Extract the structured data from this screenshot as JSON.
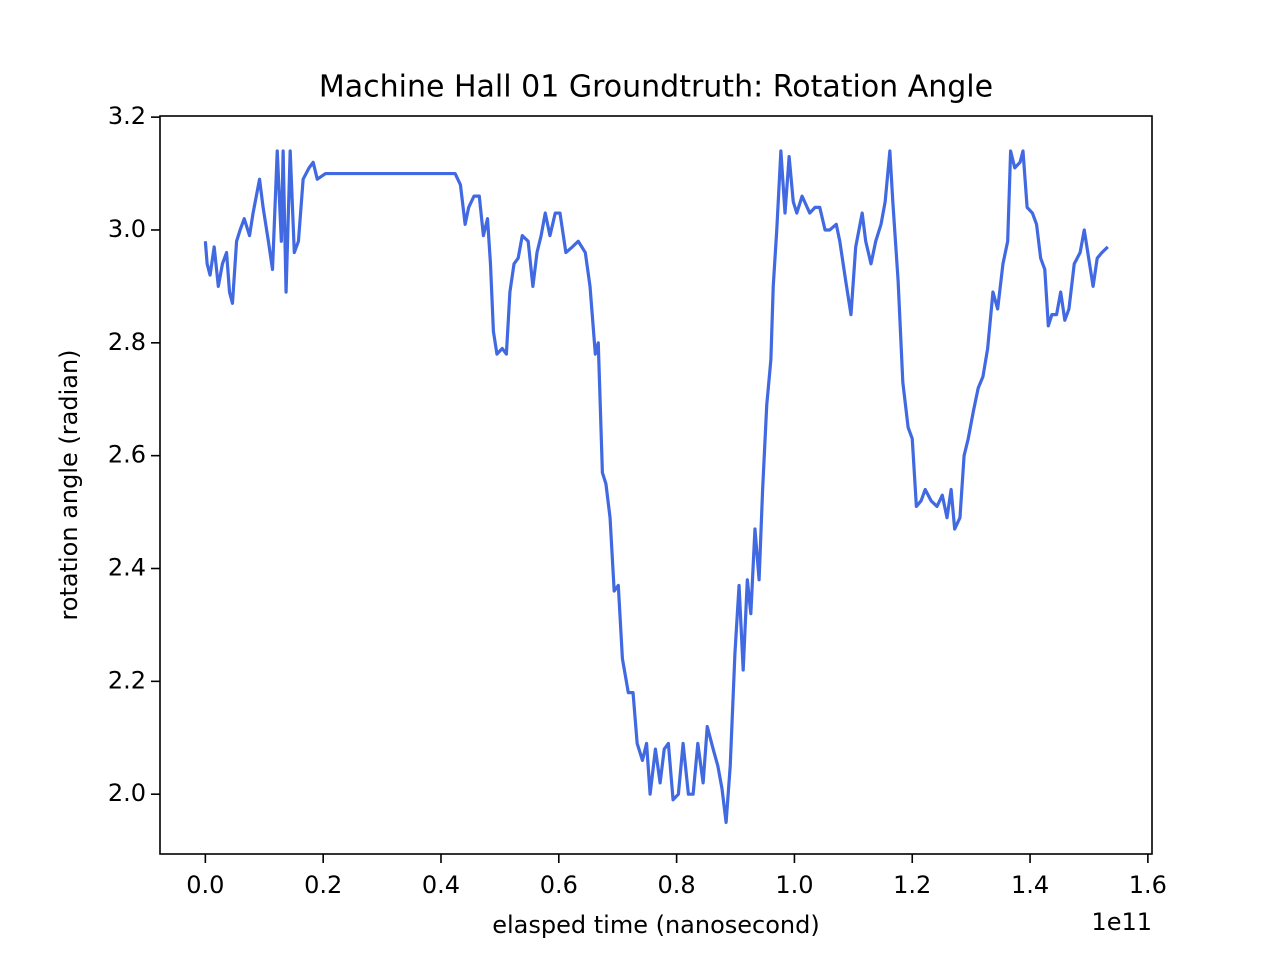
{
  "chart_data": {
    "type": "line",
    "title": "Machine Hall 01 Groundtruth: Rotation Angle",
    "x_label": "elasped time (nanosecond)",
    "y_label": "rotation angle (radian)",
    "x_offset_label": "1e11",
    "grid": false,
    "xlim": [
      -0.077,
      1.607
    ],
    "ylim": [
      1.894,
      3.202
    ],
    "xticks": [
      {
        "value": 0,
        "label": "0.0"
      },
      0.2,
      0.4,
      0.6,
      0.8,
      {
        "value": 1,
        "label": "1.0"
      },
      1.2,
      1.4,
      1.6
    ],
    "yticks": [
      {
        "value": 2,
        "label": "2.0"
      },
      2.2,
      2.4,
      2.6,
      2.8,
      {
        "value": 3,
        "label": "3.0"
      },
      3.2
    ],
    "x": [
      0,
      0.003,
      0.008,
      0.015,
      0.022,
      0.029,
      0.036,
      0.041,
      0.046,
      0.053,
      0.059,
      0.066,
      0.075,
      0.081,
      0.092,
      0.098,
      0.107,
      0.114,
      0.122,
      0.129,
      0.132,
      0.137,
      0.144,
      0.151,
      0.158,
      0.166,
      0.176,
      0.183,
      0.19,
      0.204,
      0.246,
      0.331,
      0.424,
      0.433,
      0.441,
      0.447,
      0.456,
      0.465,
      0.472,
      0.479,
      0.484,
      0.489,
      0.495,
      0.504,
      0.511,
      0.517,
      0.524,
      0.531,
      0.538,
      0.548,
      0.556,
      0.563,
      0.57,
      0.577,
      0.585,
      0.594,
      0.602,
      0.612,
      0.623,
      0.633,
      0.645,
      0.653,
      0.662,
      0.667,
      0.674,
      0.68,
      0.687,
      0.694,
      0.701,
      0.708,
      0.718,
      0.726,
      0.733,
      0.742,
      0.749,
      0.755,
      0.764,
      0.772,
      0.779,
      0.786,
      0.794,
      0.803,
      0.811,
      0.82,
      0.828,
      0.836,
      0.845,
      0.852,
      0.862,
      0.87,
      0.877,
      0.884,
      0.891,
      0.899,
      0.906,
      0.913,
      0.92,
      0.926,
      0.933,
      0.94,
      0.946,
      0.953,
      0.96,
      0.964,
      0.97,
      0.977,
      0.984,
      0.991,
      0.998,
      1.004,
      1.013,
      1.026,
      1.035,
      1.043,
      1.052,
      1.06,
      1.071,
      1.077,
      1.087,
      1.096,
      1.104,
      1.115,
      1.121,
      1.13,
      1.138,
      1.147,
      1.154,
      1.162,
      1.167,
      1.176,
      1.184,
      1.193,
      1.2,
      1.207,
      1.215,
      1.222,
      1.232,
      1.242,
      1.251,
      1.259,
      1.266,
      1.272,
      1.281,
      1.288,
      1.295,
      1.304,
      1.312,
      1.32,
      1.328,
      1.337,
      1.345,
      1.354,
      1.362,
      1.367,
      1.374,
      1.383,
      1.388,
      1.395,
      1.404,
      1.411,
      1.418,
      1.425,
      1.431,
      1.437,
      1.445,
      1.452,
      1.459,
      1.466,
      1.475,
      1.485,
      1.492,
      1.498,
      1.507,
      1.514,
      1.522,
      1.532
    ],
    "series": [
      {
        "color": "#4169e1",
        "values": [
          2.98,
          2.94,
          2.92,
          2.97,
          2.9,
          2.94,
          2.96,
          2.89,
          2.87,
          2.98,
          3.0,
          3.02,
          2.99,
          3.03,
          3.09,
          3.04,
          2.98,
          2.93,
          3.14,
          2.98,
          3.14,
          2.89,
          3.14,
          2.96,
          2.98,
          3.09,
          3.11,
          3.12,
          3.09,
          3.1,
          3.1,
          3.1,
          3.1,
          3.08,
          3.01,
          3.04,
          3.06,
          3.06,
          2.99,
          3.02,
          2.94,
          2.82,
          2.78,
          2.79,
          2.78,
          2.89,
          2.94,
          2.95,
          2.99,
          2.98,
          2.9,
          2.96,
          2.99,
          3.03,
          2.99,
          3.03,
          3.03,
          2.96,
          2.97,
          2.98,
          2.96,
          2.9,
          2.78,
          2.8,
          2.57,
          2.55,
          2.49,
          2.36,
          2.37,
          2.24,
          2.18,
          2.18,
          2.09,
          2.06,
          2.09,
          2.0,
          2.08,
          2.02,
          2.08,
          2.09,
          1.99,
          2.0,
          2.09,
          2.0,
          2.0,
          2.09,
          2.02,
          2.12,
          2.08,
          2.05,
          2.01,
          1.95,
          2.05,
          2.25,
          2.37,
          2.22,
          2.38,
          2.32,
          2.47,
          2.38,
          2.54,
          2.69,
          2.77,
          2.9,
          3.0,
          3.14,
          3.03,
          3.13,
          3.05,
          3.03,
          3.06,
          3.03,
          3.04,
          3.04,
          3.0,
          3.0,
          3.01,
          2.98,
          2.91,
          2.85,
          2.97,
          3.03,
          2.98,
          2.94,
          2.98,
          3.01,
          3.05,
          3.14,
          3.05,
          2.91,
          2.73,
          2.65,
          2.63,
          2.51,
          2.52,
          2.54,
          2.52,
          2.51,
          2.53,
          2.49,
          2.54,
          2.47,
          2.49,
          2.6,
          2.63,
          2.68,
          2.72,
          2.74,
          2.79,
          2.89,
          2.86,
          2.94,
          2.98,
          3.14,
          3.11,
          3.12,
          3.14,
          3.04,
          3.03,
          3.01,
          2.95,
          2.93,
          2.83,
          2.85,
          2.85,
          2.89,
          2.84,
          2.86,
          2.94,
          2.96,
          3.0,
          2.96,
          2.9,
          2.95,
          2.96,
          2.97
        ]
      }
    ]
  }
}
